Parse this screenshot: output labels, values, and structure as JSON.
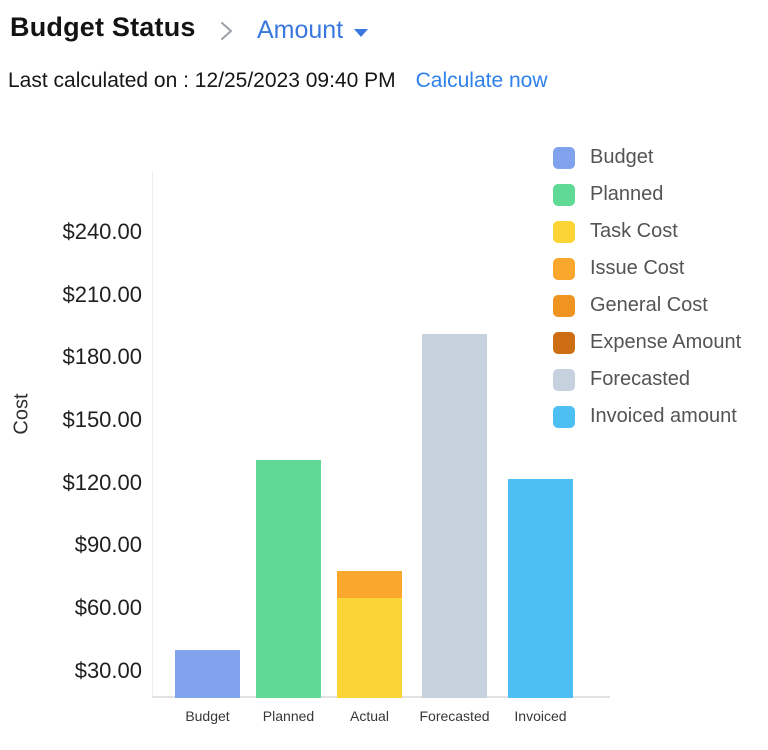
{
  "header": {
    "title": "Budget Status",
    "view_selector_label": "Amount",
    "last_calculated_text": "Last calculated on : 12/25/2023 09:40 PM",
    "calculate_now_label": "Calculate now"
  },
  "colors": {
    "title_text": "#131313",
    "breadcrumb_chevron": "#9aa0a6",
    "view_selector_blue": "#3A78DF",
    "calculate_now_blue": "#2E81EA",
    "axis_line": "#e2e2e2",
    "legend_text": "#545454"
  },
  "chart_data": {
    "type": "bar",
    "title": "",
    "xlabel": "",
    "ylabel": "Cost",
    "grid": false,
    "legend_position": "top-right",
    "categories": [
      "Budget",
      "Planned",
      "Actual",
      "Forecasted",
      "Invoiced"
    ],
    "y_axis": {
      "tick_prefix": "$",
      "tick_decimals": 2,
      "tick_min": 30,
      "tick_max": 240,
      "tick_interval": 30,
      "axis_range_estimate": [
        17,
        268
      ]
    },
    "bars": [
      {
        "category": "Budget",
        "segments": [
          {
            "label": "Budget",
            "value": 40,
            "color": "#81A2ED"
          }
        ]
      },
      {
        "category": "Planned",
        "segments": [
          {
            "label": "Planned",
            "value": 131,
            "color": "#5FD995"
          }
        ]
      },
      {
        "category": "Actual",
        "segments": [
          {
            "label": "Task Cost",
            "value": 65,
            "color": "#FBD535"
          },
          {
            "label": "Issue Cost",
            "value": 13,
            "color": "#FAA72E"
          }
        ]
      },
      {
        "category": "Forecasted",
        "segments": [
          {
            "label": "Forecasted",
            "value": 191,
            "color": "#C6D1DD"
          }
        ]
      },
      {
        "category": "Invoiced",
        "segments": [
          {
            "label": "Invoiced amount",
            "value": 122,
            "color": "#4DBFF2"
          }
        ]
      }
    ],
    "legend": [
      {
        "label": "Budget",
        "color": "#81A2ED"
      },
      {
        "label": "Planned",
        "color": "#5FD995"
      },
      {
        "label": "Task Cost",
        "color": "#FBD535"
      },
      {
        "label": "Issue Cost",
        "color": "#FAA72E"
      },
      {
        "label": "General Cost",
        "color": "#EF9420"
      },
      {
        "label": "Expense Amount",
        "color": "#CE6E14"
      },
      {
        "label": "Forecasted",
        "color": "#C6D1DD"
      },
      {
        "label": "Invoiced amount",
        "color": "#4DBFF2"
      }
    ]
  }
}
